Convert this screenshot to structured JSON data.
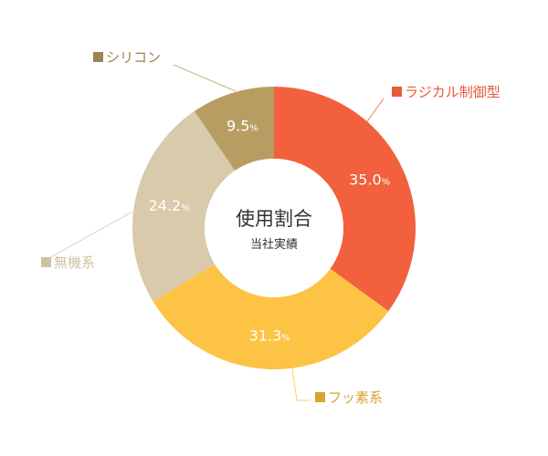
{
  "chart_data": {
    "type": "pie",
    "variant": "donut",
    "center_title": "使用割合",
    "center_subtitle": "当社実績",
    "unit": "%",
    "slices": [
      {
        "label": "ラジカル制御型",
        "value": 35.0,
        "display": "35.0",
        "color": "#F2603D"
      },
      {
        "label": "フッ素系",
        "value": 31.3,
        "display": "31.3",
        "color": "#FDC345"
      },
      {
        "label": "無機系",
        "value": 24.2,
        "display": "24.2",
        "color": "#D8CAAA"
      },
      {
        "label": "シリコン",
        "value": 9.5,
        "display": "9.5",
        "color": "#B89D63"
      }
    ],
    "legend_text_colors": {
      "ラジカル制御型": "#E85A38",
      "フッ素系": "#D9A32E",
      "無機系": "#CFC2A4",
      "シリコン": "#9C8450"
    }
  }
}
